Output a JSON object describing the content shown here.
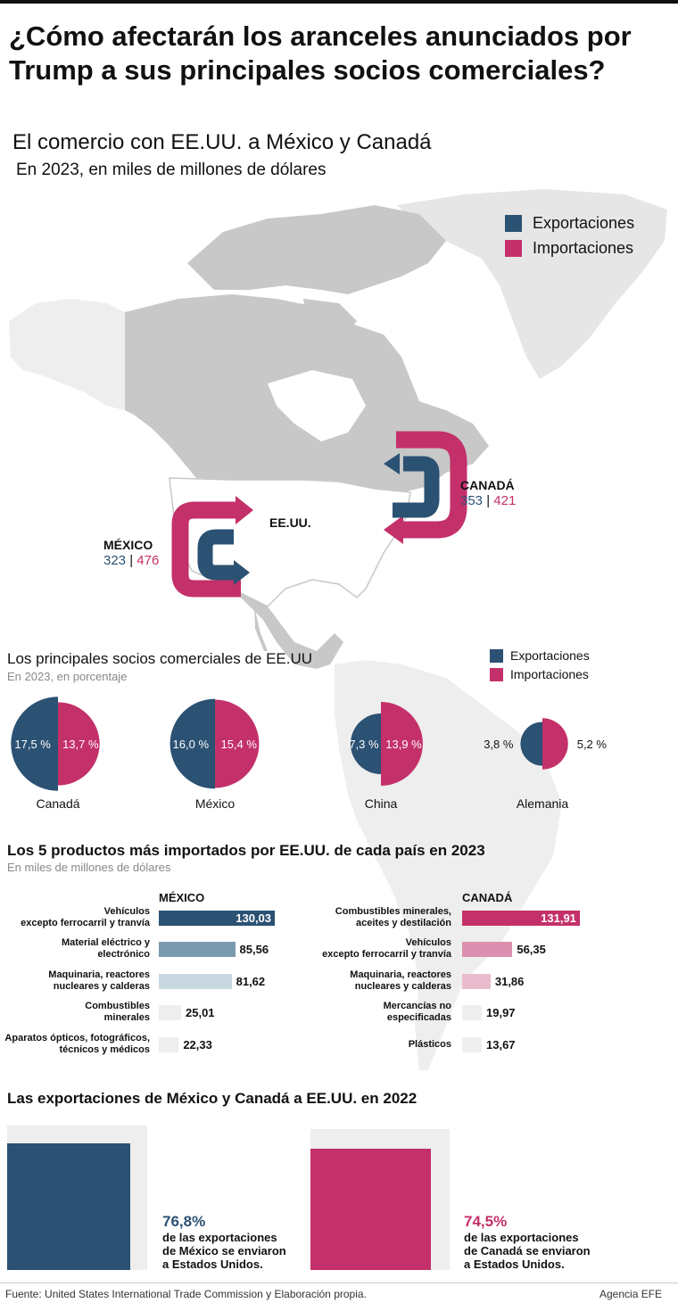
{
  "title": "¿Cómo afectarán los aranceles anunciados por Trump a sus principales socios comerciales?",
  "map": {
    "title": "El comercio con EE.UU. a México y Canadá",
    "subtitle": "En 2023, en miles de millones de dólares",
    "legend": {
      "exports": "Exportaciones",
      "imports": "Importaciones"
    },
    "usa_label": "EE.UU.",
    "mexico": {
      "name": "MÉXICO",
      "exports": "323",
      "imports": "476"
    },
    "canada": {
      "name": "CANADÁ",
      "exports": "353",
      "imports": "421"
    }
  },
  "colors": {
    "exports": "#2b5173",
    "imports": "#c4306a",
    "land": "#c8c8c8",
    "usa": "#ffffff"
  },
  "pies": {
    "title": "Los principales socios comerciales de EE.UU",
    "subtitle": "En 2023, en porcentaje",
    "legend": {
      "exports": "Exportaciones",
      "imports": "Importaciones"
    }
  },
  "products": {
    "title": "Los 5 productos más importados por EE.UU. de cada país en 2023",
    "subtitle": "En miles de millones de dólares"
  },
  "exports_2022": {
    "title": "Las exportaciones de México y Canadá a EE.UU. en 2022",
    "mexico": {
      "pct": "76,8%",
      "line1": "de las exportaciones",
      "line2": "de México se enviaron",
      "line3": "a Estados Unidos."
    },
    "canada": {
      "pct": "74,5%",
      "line1": "de las exportaciones",
      "line2": "de Canadá se enviaron",
      "line3": "a Estados Unidos."
    }
  },
  "footer": {
    "source": "Fuente: United States International Trade Commission y Elaboración propia.",
    "agency": "Agencia EFE"
  },
  "chart_data": [
    {
      "type": "pie",
      "title": "Los principales socios comerciales de EE.UU",
      "series": [
        {
          "name": "Canadá",
          "exports": 17.5,
          "imports": 13.7,
          "exports_label": "17,5 %",
          "imports_label": "13,7 %"
        },
        {
          "name": "México",
          "exports": 16.0,
          "imports": 15.4,
          "exports_label": "16,0 %",
          "imports_label": "15,4 %"
        },
        {
          "name": "China",
          "exports": 7.3,
          "imports": 13.9,
          "exports_label": "7,3 %",
          "imports_label": "13,9 %"
        },
        {
          "name": "Alemania",
          "exports": 3.8,
          "imports": 5.2,
          "exports_label": "3,8 %",
          "imports_label": "5,2 %"
        }
      ]
    },
    {
      "type": "bar",
      "title": "MÉXICO",
      "categories": [
        [
          "Vehículos",
          "excepto ferrocarril y tranvía"
        ],
        [
          "Material eléctrico y",
          "electrónico"
        ],
        [
          "Maquinaria, reactores",
          "nucleares y calderas"
        ],
        [
          "Combustibles",
          "minerales"
        ],
        [
          "Aparatos ópticos, fotográficos,",
          "técnicos y médicos"
        ]
      ],
      "values": [
        130.03,
        85.56,
        81.62,
        25.01,
        22.33
      ],
      "value_labels": [
        "130,03",
        "85,56",
        "81,62",
        "25,01",
        "22,33"
      ],
      "colors": [
        "#2b5173",
        "#7a9ab0",
        "#c9d7e1",
        "#eeeeee",
        "#eeeeee"
      ]
    },
    {
      "type": "bar",
      "title": "CANADÁ",
      "categories": [
        [
          "Combustibles minerales,",
          "aceites y destilación"
        ],
        [
          "Vehículos",
          "excepto ferrocarril y tranvía"
        ],
        [
          "Maquinaria, reactores",
          "nucleares y calderas"
        ],
        [
          "Mercancías no",
          "especificadas"
        ],
        [
          "Plásticos"
        ]
      ],
      "values": [
        131.91,
        56.35,
        31.86,
        19.97,
        13.67
      ],
      "value_labels": [
        "131,91",
        "56,35",
        "31,86",
        "19,97",
        "13,67"
      ],
      "colors": [
        "#c4306a",
        "#dc8fae",
        "#e9bccd",
        "#eeeeee",
        "#eeeeee"
      ]
    },
    {
      "type": "bar",
      "title": "Las exportaciones de México y Canadá a EE.UU. en 2022",
      "categories": [
        "México",
        "Canadá"
      ],
      "values": [
        76.8,
        74.5
      ]
    }
  ]
}
